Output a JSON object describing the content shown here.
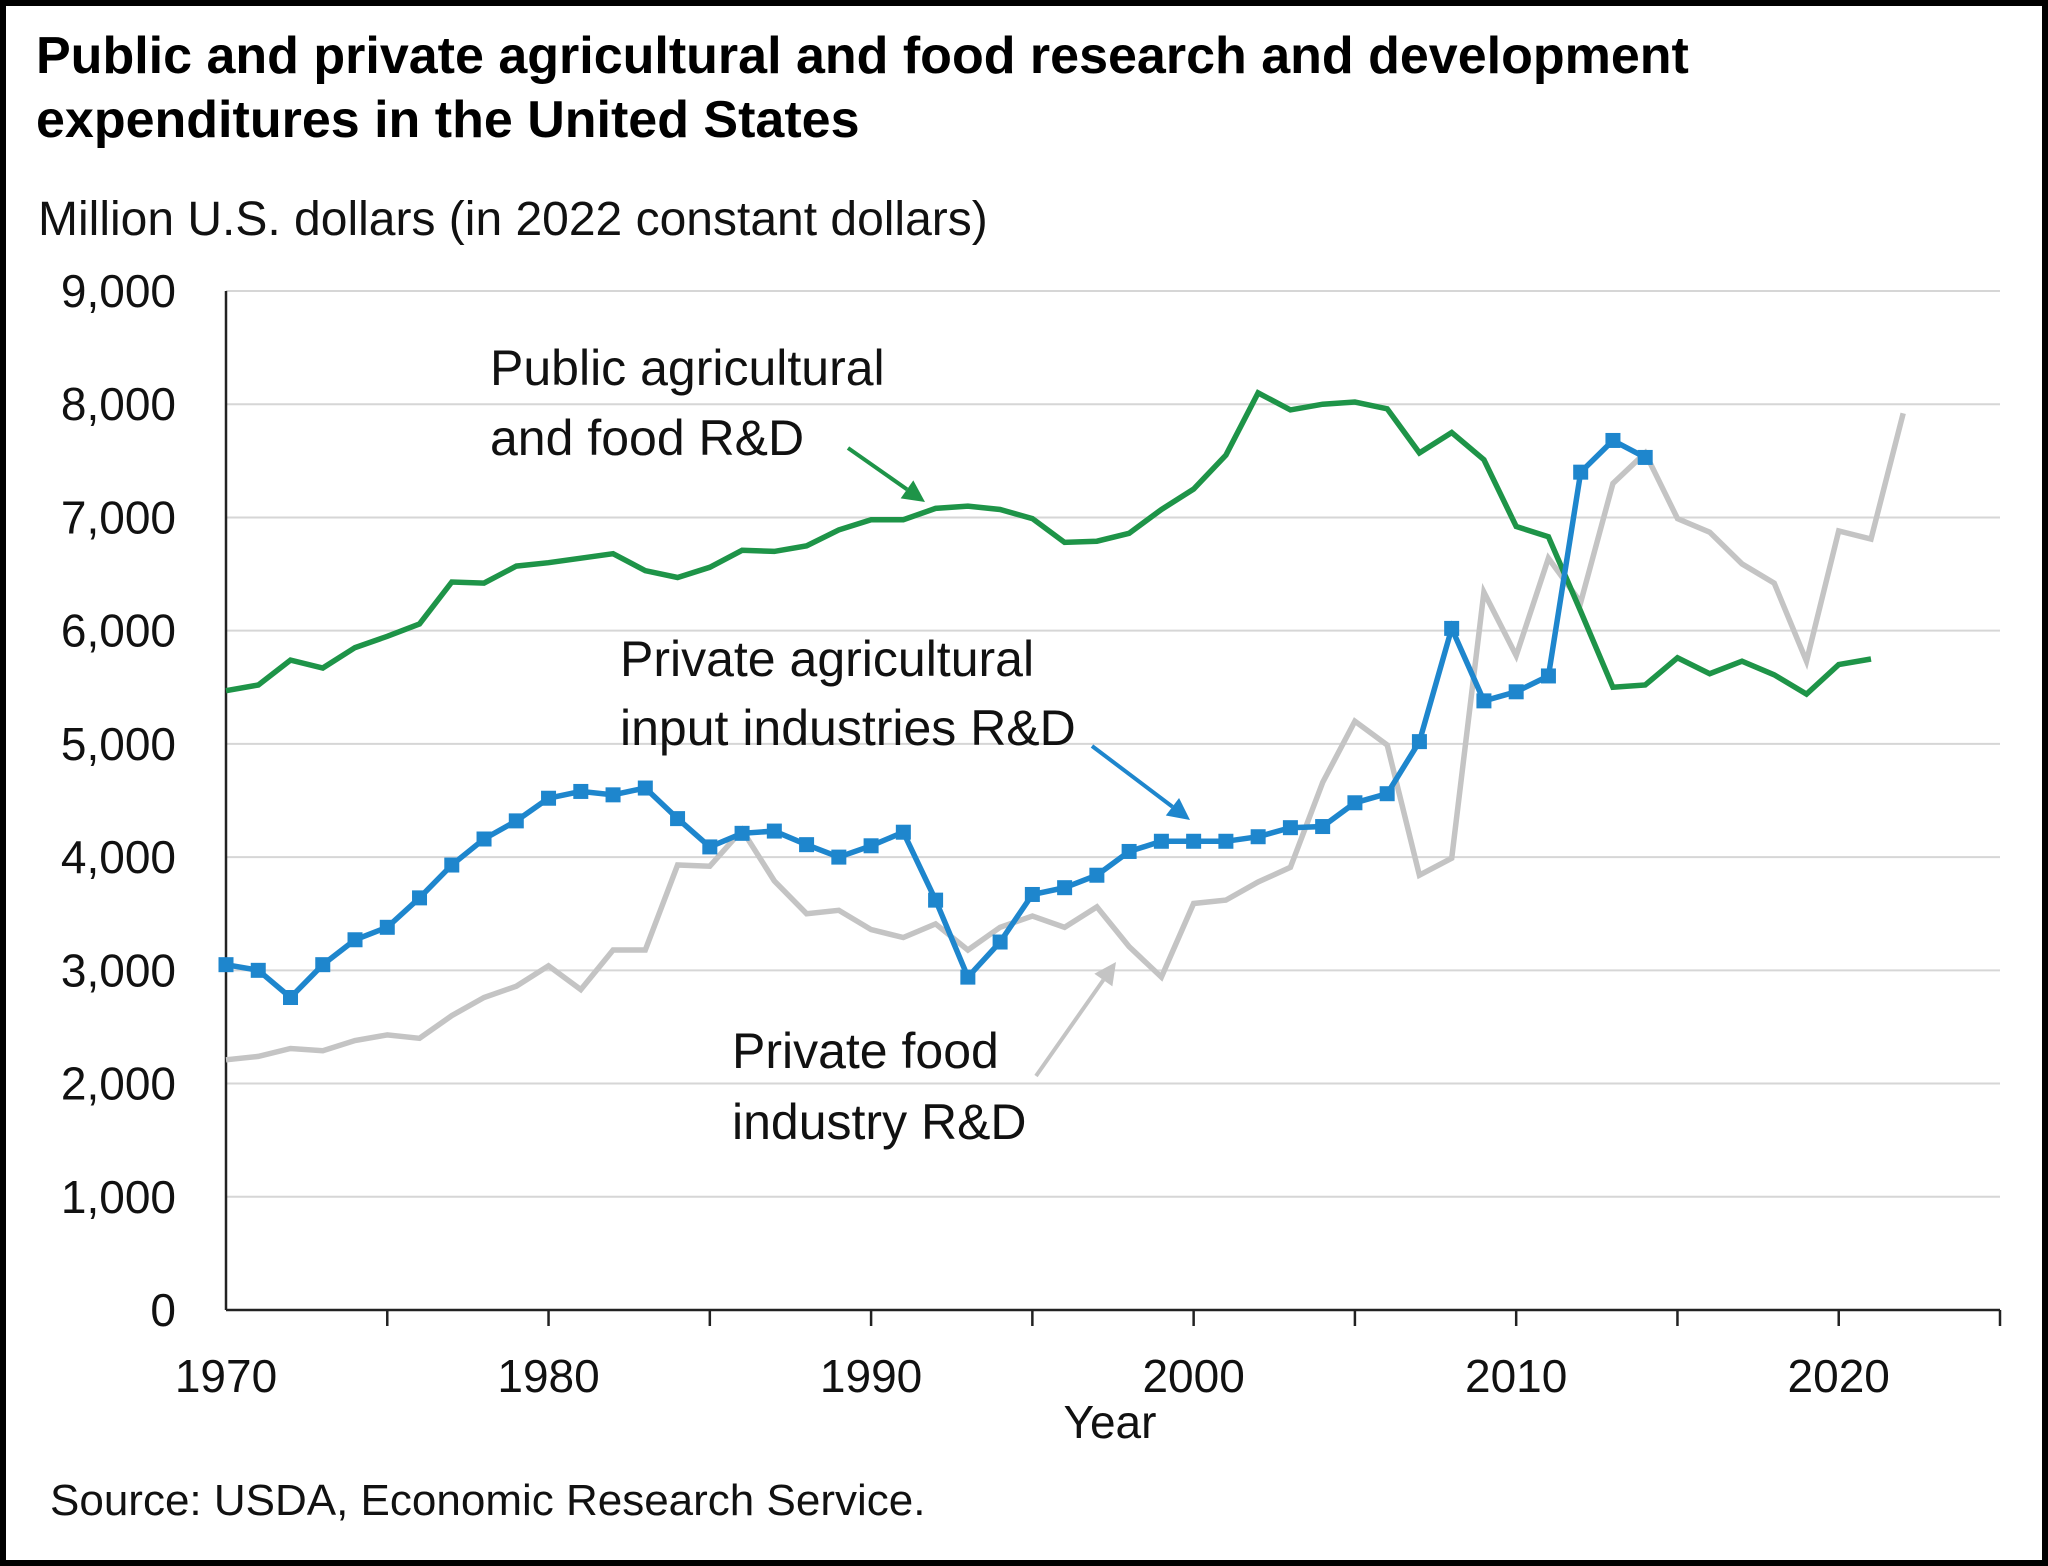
{
  "chart_data": {
    "type": "line",
    "title": "Public and private agricultural and food research and development expenditures in the United States",
    "ylabel": "Million U.S. dollars (in 2022 constant dollars)",
    "xlabel": "Year",
    "source": "Source: USDA, Economic Research Service.",
    "xlim": [
      1970,
      2025
    ],
    "ylim": [
      0,
      9000
    ],
    "x_ticks": [
      1970,
      1980,
      1990,
      2000,
      2010,
      2020
    ],
    "y_ticks": [
      {
        "value": 0,
        "label": "0"
      },
      {
        "value": 1000,
        "label": "1,000"
      },
      {
        "value": 2000,
        "label": "2,000"
      },
      {
        "value": 3000,
        "label": "3,000"
      },
      {
        "value": 4000,
        "label": "4,000"
      },
      {
        "value": 5000,
        "label": "5,000"
      },
      {
        "value": 6000,
        "label": "6,000"
      },
      {
        "value": 7000,
        "label": "7,000"
      },
      {
        "value": 8000,
        "label": "8,000"
      },
      {
        "value": 9000,
        "label": "9,000"
      }
    ],
    "grid": "horizontal",
    "series": [
      {
        "name": "Public agricultural and food R&D",
        "color": "#1e9448",
        "markers": false,
        "x": [
          1970,
          1971,
          1972,
          1973,
          1974,
          1975,
          1976,
          1977,
          1978,
          1979,
          1980,
          1981,
          1982,
          1983,
          1984,
          1985,
          1986,
          1987,
          1988,
          1989,
          1990,
          1991,
          1992,
          1993,
          1994,
          1995,
          1996,
          1997,
          1998,
          1999,
          2000,
          2001,
          2002,
          2003,
          2004,
          2005,
          2006,
          2007,
          2008,
          2009,
          2010,
          2011,
          2012,
          2013,
          2014,
          2015,
          2016,
          2017,
          2018,
          2019,
          2020,
          2021
        ],
        "values": [
          5470,
          5520,
          5740,
          5670,
          5850,
          5950,
          6060,
          6430,
          6420,
          6570,
          6600,
          6640,
          6680,
          6530,
          6470,
          6560,
          6710,
          6700,
          6750,
          6890,
          6980,
          6980,
          7080,
          7100,
          7070,
          6990,
          6780,
          6790,
          6860,
          7070,
          7250,
          7550,
          8100,
          7950,
          8000,
          8020,
          7960,
          7570,
          7750,
          7510,
          6920,
          6830,
          6170,
          5500,
          5520,
          5760,
          5620,
          5730,
          5610,
          5440,
          5700,
          5750
        ],
        "annotation": [
          "Public agricultural",
          "and food R&D"
        ]
      },
      {
        "name": "Private agricultural input industries R&D",
        "color": "#1e86cd",
        "markers": true,
        "x": [
          1970,
          1971,
          1972,
          1973,
          1974,
          1975,
          1976,
          1977,
          1978,
          1979,
          1980,
          1981,
          1982,
          1983,
          1984,
          1985,
          1986,
          1987,
          1988,
          1989,
          1990,
          1991,
          1992,
          1993,
          1994,
          1995,
          1996,
          1997,
          1998,
          1999,
          2000,
          2001,
          2002,
          2003,
          2004,
          2005,
          2006,
          2007,
          2008,
          2009,
          2010,
          2011,
          2012,
          2013,
          2014
        ],
        "values": [
          3050,
          3000,
          2760,
          3050,
          3270,
          3380,
          3640,
          3930,
          4160,
          4320,
          4520,
          4580,
          4550,
          4610,
          4340,
          4090,
          4210,
          4230,
          4110,
          4000,
          4100,
          4220,
          3620,
          2940,
          3250,
          3670,
          3730,
          3840,
          4050,
          4140,
          4140,
          4140,
          4180,
          4260,
          4270,
          4480,
          4560,
          5020,
          6020,
          5380,
          5460,
          5600,
          7400,
          7680,
          7530
        ],
        "annotation": [
          "Private agricultural",
          "input industries R&D"
        ]
      },
      {
        "name": "Private food industry R&D",
        "color": "#c4c4c4",
        "markers": false,
        "x": [
          1970,
          1971,
          1972,
          1973,
          1974,
          1975,
          1976,
          1977,
          1978,
          1979,
          1980,
          1981,
          1982,
          1983,
          1984,
          1985,
          1986,
          1987,
          1988,
          1989,
          1990,
          1991,
          1992,
          1993,
          1994,
          1995,
          1996,
          1997,
          1998,
          1999,
          2000,
          2001,
          2002,
          2003,
          2004,
          2005,
          2006,
          2007,
          2008,
          2009,
          2010,
          2011,
          2012,
          2013,
          2014,
          2015,
          2016,
          2017,
          2018,
          2019,
          2020,
          2021,
          2022
        ],
        "values": [
          2210,
          2240,
          2310,
          2290,
          2380,
          2430,
          2400,
          2600,
          2760,
          2860,
          3040,
          2830,
          3180,
          3180,
          3930,
          3920,
          4240,
          3790,
          3500,
          3530,
          3360,
          3290,
          3410,
          3180,
          3380,
          3480,
          3380,
          3560,
          3210,
          2940,
          3590,
          3620,
          3780,
          3910,
          4660,
          5200,
          4990,
          3840,
          3990,
          6340,
          5780,
          6640,
          6250,
          7300,
          7570,
          6990,
          6870,
          6590,
          6420,
          5730,
          6880,
          6810,
          7920
        ],
        "annotation": [
          "Private food",
          "industry R&D"
        ]
      }
    ]
  }
}
